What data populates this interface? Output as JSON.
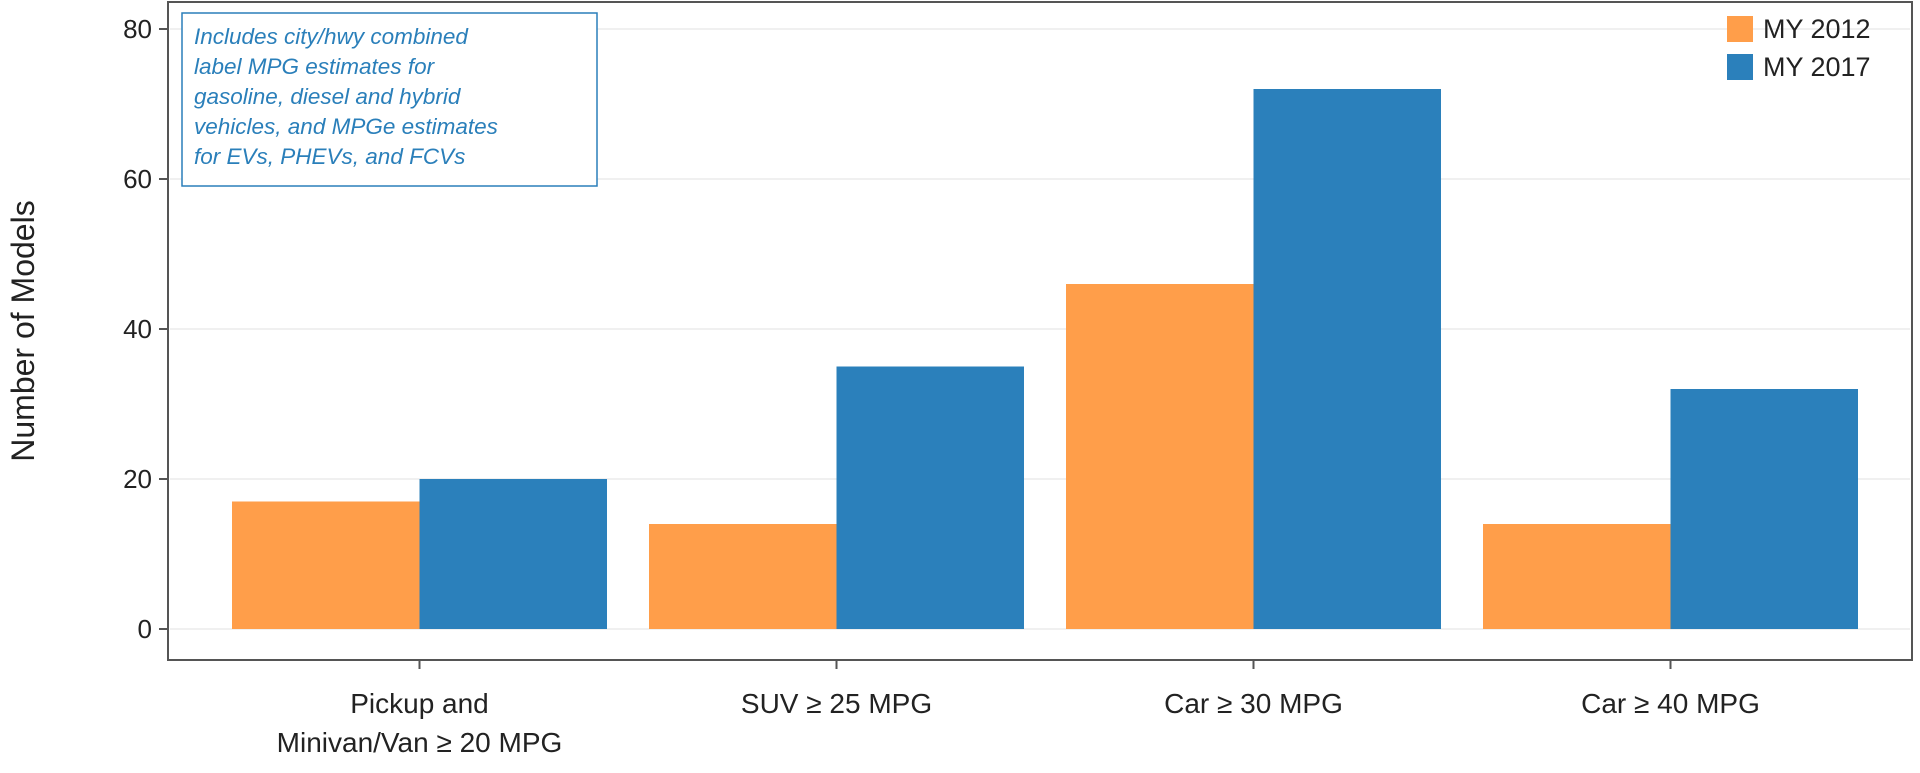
{
  "chart_data": {
    "type": "bar",
    "title": "",
    "xlabel": "",
    "ylabel": "Number of Models",
    "ylim": [
      0,
      80
    ],
    "yticks": [
      0,
      20,
      40,
      60,
      80
    ],
    "grid": true,
    "legend_position": "top-right",
    "categories": [
      [
        "Pickup and",
        "Minivan/Van ≥ 20 MPG"
      ],
      [
        "SUV ≥ 25 MPG"
      ],
      [
        "Car ≥ 30 MPG"
      ],
      [
        "Car ≥ 40 MPG"
      ]
    ],
    "series": [
      {
        "name": "MY 2012",
        "color": "#ff9e4a",
        "values": [
          17,
          14,
          46,
          14
        ]
      },
      {
        "name": "MY 2017",
        "color": "#2b80bb",
        "values": [
          20,
          35,
          72,
          32
        ]
      }
    ],
    "annotation": [
      "Includes city/hwy combined",
      "label MPG estimates for",
      "gasoline, diesel and hybrid",
      "vehicles, and MPGe estimates",
      "for EVs, PHEVs, and FCVs"
    ]
  },
  "colors": {
    "axis": "#555555",
    "grid": "#ececec",
    "annotation": "#2a7fba"
  }
}
